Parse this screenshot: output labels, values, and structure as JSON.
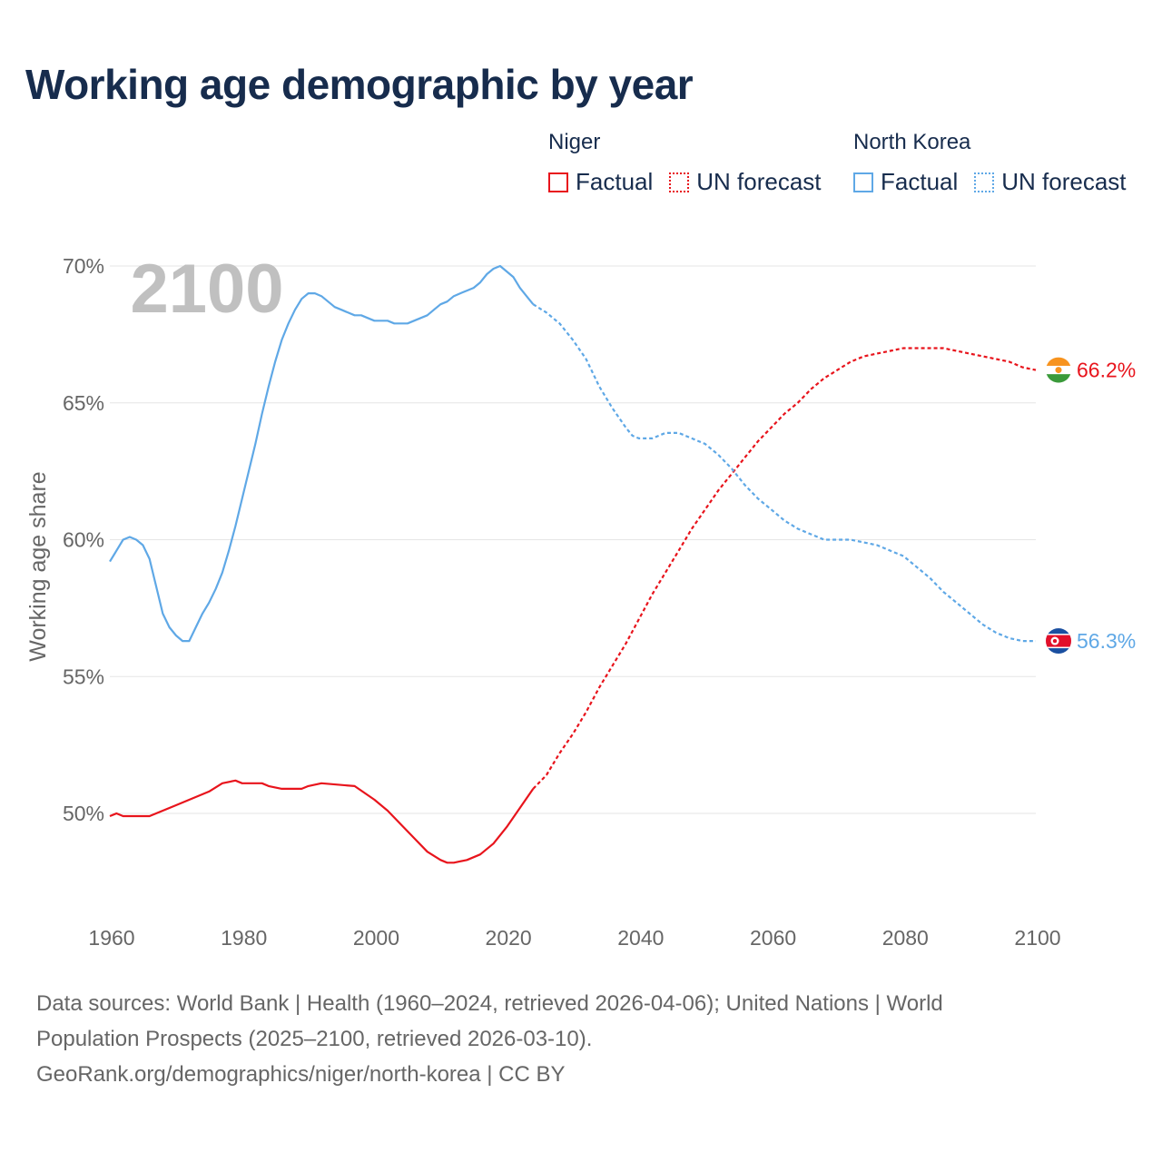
{
  "title": "Working age demographic by year",
  "legend": {
    "groups": [
      {
        "name": "Niger",
        "color": "#e8141c",
        "factual_label": "Factual",
        "forecast_label": "UN forecast"
      },
      {
        "name": "North Korea",
        "color": "#5fa8e6",
        "factual_label": "Factual",
        "forecast_label": "UN forecast"
      }
    ]
  },
  "year_watermark": "2100",
  "source": {
    "line1": "Data sources: World Bank | Health (1960–2024, retrieved 2026-04-06); United Nations | World",
    "line2": "Population Prospects (2025–2100, retrieved 2026-03-10).",
    "line3": "GeoRank.org/demographics/niger/north-korea | CC BY"
  },
  "chart_data": {
    "type": "line",
    "title": "Working age demographic by year",
    "xlabel": "",
    "ylabel": "Working age share",
    "xlim": [
      1960,
      2100
    ],
    "ylim": [
      47,
      70
    ],
    "x_ticks": [
      1960,
      1980,
      2000,
      2020,
      2040,
      2060,
      2080,
      2100
    ],
    "y_ticks": [
      50,
      55,
      60,
      65,
      70
    ],
    "y_tick_labels": [
      "50%",
      "55%",
      "60%",
      "65%",
      "70%"
    ],
    "grid": true,
    "factual_end_year": 2024,
    "series": [
      {
        "name": "Niger",
        "color": "#e8141c",
        "end_label": "66.2%",
        "points": [
          [
            1960,
            49.9
          ],
          [
            1961,
            50.0
          ],
          [
            1962,
            49.9
          ],
          [
            1966,
            49.9
          ],
          [
            1970,
            50.3
          ],
          [
            1975,
            50.8
          ],
          [
            1977,
            51.1
          ],
          [
            1979,
            51.2
          ],
          [
            1980,
            51.1
          ],
          [
            1983,
            51.1
          ],
          [
            1984,
            51.0
          ],
          [
            1986,
            50.9
          ],
          [
            1989,
            50.9
          ],
          [
            1990,
            51.0
          ],
          [
            1992,
            51.1
          ],
          [
            1997,
            51.0
          ],
          [
            2000,
            50.5
          ],
          [
            2002,
            50.1
          ],
          [
            2004,
            49.6
          ],
          [
            2006,
            49.1
          ],
          [
            2008,
            48.6
          ],
          [
            2010,
            48.3
          ],
          [
            2011,
            48.2
          ],
          [
            2012,
            48.2
          ],
          [
            2014,
            48.3
          ],
          [
            2016,
            48.5
          ],
          [
            2018,
            48.9
          ],
          [
            2020,
            49.5
          ],
          [
            2022,
            50.2
          ],
          [
            2024,
            50.9
          ],
          [
            2026,
            51.4
          ],
          [
            2028,
            52.2
          ],
          [
            2030,
            52.9
          ],
          [
            2032,
            53.7
          ],
          [
            2034,
            54.6
          ],
          [
            2036,
            55.4
          ],
          [
            2038,
            56.2
          ],
          [
            2040,
            57.1
          ],
          [
            2042,
            58.0
          ],
          [
            2044,
            58.8
          ],
          [
            2046,
            59.6
          ],
          [
            2048,
            60.4
          ],
          [
            2050,
            61.1
          ],
          [
            2052,
            61.8
          ],
          [
            2054,
            62.4
          ],
          [
            2056,
            63.0
          ],
          [
            2058,
            63.6
          ],
          [
            2060,
            64.1
          ],
          [
            2062,
            64.6
          ],
          [
            2064,
            65.0
          ],
          [
            2066,
            65.5
          ],
          [
            2068,
            65.9
          ],
          [
            2070,
            66.2
          ],
          [
            2072,
            66.5
          ],
          [
            2074,
            66.7
          ],
          [
            2076,
            66.8
          ],
          [
            2078,
            66.9
          ],
          [
            2080,
            67.0
          ],
          [
            2082,
            67.0
          ],
          [
            2084,
            67.0
          ],
          [
            2086,
            67.0
          ],
          [
            2088,
            66.9
          ],
          [
            2090,
            66.8
          ],
          [
            2092,
            66.7
          ],
          [
            2094,
            66.6
          ],
          [
            2096,
            66.5
          ],
          [
            2098,
            66.3
          ],
          [
            2100,
            66.2
          ]
        ]
      },
      {
        "name": "North Korea",
        "color": "#5fa8e6",
        "end_label": "56.3%",
        "points": [
          [
            1960,
            59.2
          ],
          [
            1961,
            59.6
          ],
          [
            1962,
            60.0
          ],
          [
            1963,
            60.1
          ],
          [
            1964,
            60.0
          ],
          [
            1965,
            59.8
          ],
          [
            1966,
            59.3
          ],
          [
            1967,
            58.3
          ],
          [
            1968,
            57.3
          ],
          [
            1969,
            56.8
          ],
          [
            1970,
            56.5
          ],
          [
            1971,
            56.3
          ],
          [
            1972,
            56.3
          ],
          [
            1973,
            56.8
          ],
          [
            1974,
            57.3
          ],
          [
            1975,
            57.7
          ],
          [
            1976,
            58.2
          ],
          [
            1977,
            58.8
          ],
          [
            1978,
            59.6
          ],
          [
            1979,
            60.5
          ],
          [
            1980,
            61.5
          ],
          [
            1981,
            62.5
          ],
          [
            1982,
            63.5
          ],
          [
            1983,
            64.6
          ],
          [
            1984,
            65.6
          ],
          [
            1985,
            66.5
          ],
          [
            1986,
            67.3
          ],
          [
            1987,
            67.9
          ],
          [
            1988,
            68.4
          ],
          [
            1989,
            68.8
          ],
          [
            1990,
            69.0
          ],
          [
            1991,
            69.0
          ],
          [
            1992,
            68.9
          ],
          [
            1993,
            68.7
          ],
          [
            1994,
            68.5
          ],
          [
            1995,
            68.4
          ],
          [
            1996,
            68.3
          ],
          [
            1997,
            68.2
          ],
          [
            1998,
            68.2
          ],
          [
            1999,
            68.1
          ],
          [
            2000,
            68.0
          ],
          [
            2001,
            68.0
          ],
          [
            2002,
            68.0
          ],
          [
            2003,
            67.9
          ],
          [
            2004,
            67.9
          ],
          [
            2005,
            67.9
          ],
          [
            2006,
            68.0
          ],
          [
            2007,
            68.1
          ],
          [
            2008,
            68.2
          ],
          [
            2009,
            68.4
          ],
          [
            2010,
            68.6
          ],
          [
            2011,
            68.7
          ],
          [
            2012,
            68.9
          ],
          [
            2013,
            69.0
          ],
          [
            2014,
            69.1
          ],
          [
            2015,
            69.2
          ],
          [
            2016,
            69.4
          ],
          [
            2017,
            69.7
          ],
          [
            2018,
            69.9
          ],
          [
            2019,
            70.0
          ],
          [
            2020,
            69.8
          ],
          [
            2021,
            69.6
          ],
          [
            2022,
            69.2
          ],
          [
            2023,
            68.9
          ],
          [
            2024,
            68.6
          ],
          [
            2026,
            68.3
          ],
          [
            2028,
            67.9
          ],
          [
            2030,
            67.3
          ],
          [
            2032,
            66.6
          ],
          [
            2034,
            65.6
          ],
          [
            2036,
            64.8
          ],
          [
            2038,
            64.1
          ],
          [
            2039,
            63.8
          ],
          [
            2040,
            63.7
          ],
          [
            2042,
            63.7
          ],
          [
            2044,
            63.9
          ],
          [
            2046,
            63.9
          ],
          [
            2048,
            63.7
          ],
          [
            2050,
            63.5
          ],
          [
            2052,
            63.1
          ],
          [
            2054,
            62.6
          ],
          [
            2056,
            62.0
          ],
          [
            2058,
            61.5
          ],
          [
            2060,
            61.1
          ],
          [
            2062,
            60.7
          ],
          [
            2064,
            60.4
          ],
          [
            2066,
            60.2
          ],
          [
            2068,
            60.0
          ],
          [
            2070,
            60.0
          ],
          [
            2072,
            60.0
          ],
          [
            2074,
            59.9
          ],
          [
            2076,
            59.8
          ],
          [
            2078,
            59.6
          ],
          [
            2080,
            59.4
          ],
          [
            2082,
            59.0
          ],
          [
            2084,
            58.6
          ],
          [
            2086,
            58.1
          ],
          [
            2088,
            57.7
          ],
          [
            2090,
            57.3
          ],
          [
            2092,
            56.9
          ],
          [
            2094,
            56.6
          ],
          [
            2096,
            56.4
          ],
          [
            2098,
            56.3
          ],
          [
            2100,
            56.3
          ]
        ]
      }
    ]
  }
}
